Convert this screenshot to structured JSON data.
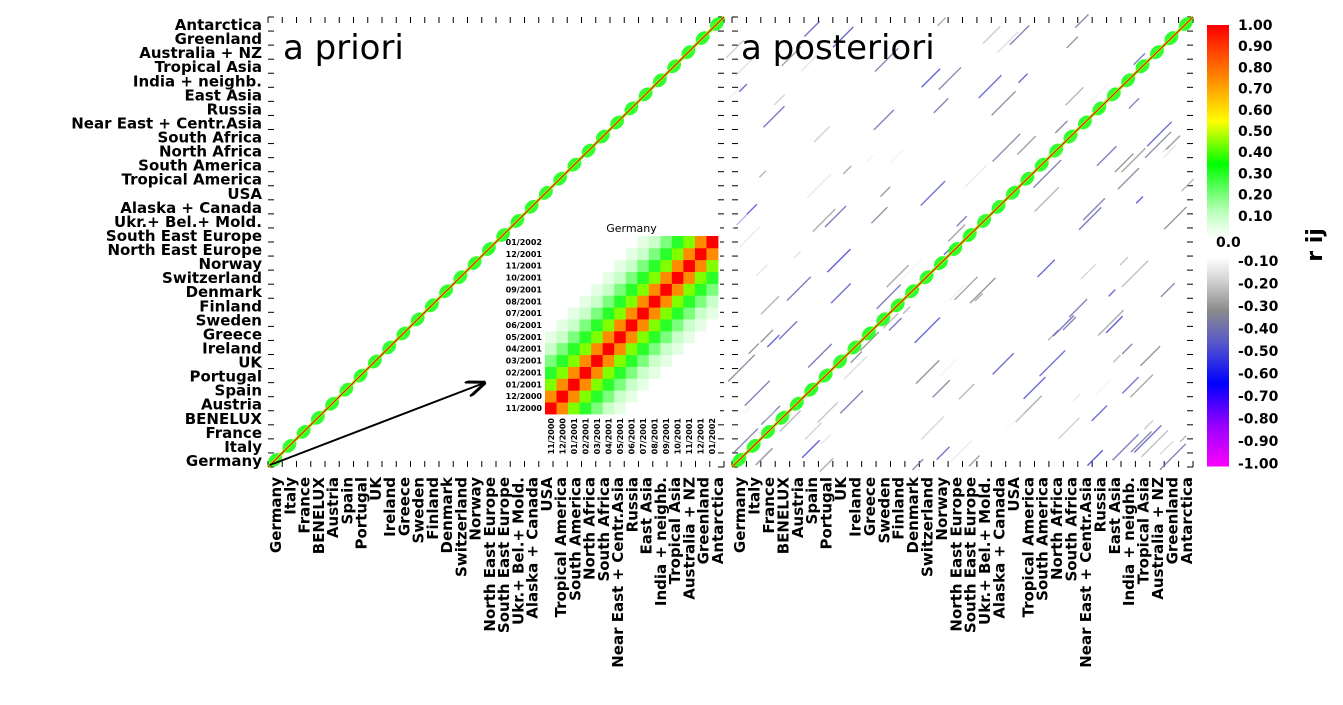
{
  "chart_data": [
    {
      "type": "heatmap",
      "title": "a priori",
      "categories": [
        "Germany",
        "Italy",
        "France",
        "BENELUX",
        "Austria",
        "Spain",
        "Portugal",
        "UK",
        "Ireland",
        "Greece",
        "Sweden",
        "Finland",
        "Denmark",
        "Switzerland",
        "Norway",
        "North East Europe",
        "South East Europe",
        "Ukr.+ Bel.+ Mold.",
        "Alaska + Canada",
        "USA",
        "Tropical America",
        "South America",
        "North Africa",
        "South Africa",
        "Near East + Centr.Asia",
        "Russia",
        "East Asia",
        "India + neighb.",
        "Tropical Asia",
        "Australia + NZ",
        "Greenland",
        "Antarctica"
      ],
      "months_per_region": 15,
      "diagonal_r": 1.0,
      "within_region_r": "0.1-0.6 near diagonal",
      "cross_region_r": 0.0
    },
    {
      "type": "heatmap",
      "title": "a posteriori",
      "categories": [
        "Germany",
        "Italy",
        "France",
        "BENELUX",
        "Austria",
        "Spain",
        "Portugal",
        "UK",
        "Ireland",
        "Greece",
        "Sweden",
        "Finland",
        "Denmark",
        "Switzerland",
        "Norway",
        "North East Europe",
        "South East Europe",
        "Ukr.+ Bel.+ Mold.",
        "Alaska + Canada",
        "USA",
        "Tropical America",
        "South America",
        "North Africa",
        "South Africa",
        "Near East + Centr.Asia",
        "Russia",
        "East Asia",
        "India + neighb.",
        "Tropical Asia",
        "Australia + NZ",
        "Greenland",
        "Antarctica"
      ],
      "diagonal_r": 1.0,
      "off_diagonal_r_range": [
        -0.45,
        0.15
      ]
    },
    {
      "type": "heatmap",
      "title": "Germany",
      "months": [
        "11/2000",
        "12/2000",
        "01/2001",
        "02/2001",
        "03/2001",
        "04/2001",
        "05/2001",
        "06/2001",
        "07/2001",
        "08/2001",
        "09/2001",
        "10/2001",
        "11/2001",
        "12/2001",
        "01/2002"
      ],
      "lag_r": [
        1.0,
        0.75,
        0.45,
        0.3,
        0.2,
        0.1,
        0.05,
        0.0
      ]
    }
  ],
  "colorbar": {
    "label": "r ij",
    "zero_label": "0.0",
    "positive_ticks": [
      "1.00",
      "0.90",
      "0.80",
      "0.70",
      "0.60",
      "0.50",
      "0.40",
      "0.30",
      "0.20",
      "0.10"
    ],
    "negative_ticks": [
      "-0.10",
      "-0.20",
      "-0.30",
      "-0.40",
      "-0.50",
      "-0.60",
      "-0.70",
      "-0.80",
      "-0.90",
      "-1.00"
    ],
    "range": [
      -1.0,
      1.0
    ],
    "colors": {
      "pos_1.0": "#ff0000",
      "pos_0.75": "#ff8c00",
      "pos_0.5": "#ffff00",
      "pos_0.3": "#00ff00",
      "pos_0.1": "#ccffcc",
      "zero": "#ffffff",
      "neg_0.2": "#a0a0a0",
      "neg_0.4": "#5a5ac8",
      "neg_0.6": "#0000ff",
      "neg_1.0": "#ff00ff"
    }
  }
}
